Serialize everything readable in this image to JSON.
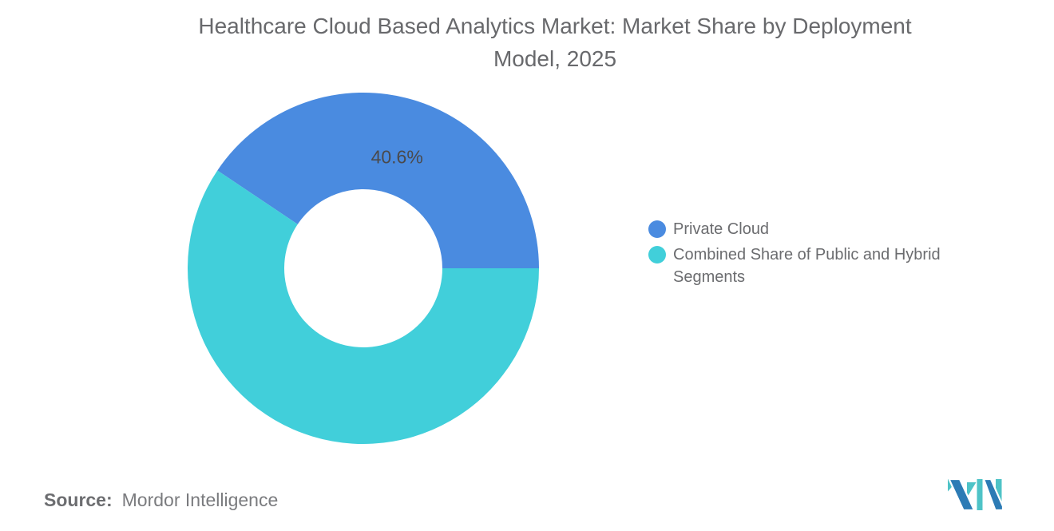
{
  "title": {
    "line1": "Healthcare Cloud Based Analytics Market: Market Share by Deployment",
    "line2": "Model, 2025"
  },
  "chart_data": {
    "type": "pie",
    "subtype": "donut",
    "title": "Healthcare Cloud Based Analytics Market: Market Share by Deployment Model, 2025",
    "labels": [
      "Private Cloud",
      "Combined Share of Public and Hybrid Segments"
    ],
    "values": [
      40.6,
      59.4
    ],
    "colors": [
      "#4A8BE0",
      "#41CFDA"
    ],
    "data_labels": [
      "40.6%",
      ""
    ],
    "inner_radius_ratio": 0.45,
    "legend_position": "right",
    "grid": false
  },
  "legend": {
    "items": [
      {
        "label": "Private Cloud",
        "color": "#4A8BE0"
      },
      {
        "label": "Combined Share of Public and Hybrid Segments",
        "color": "#41CFDA"
      }
    ]
  },
  "source": {
    "label": "Source:",
    "text": "Mordor Intelligence"
  },
  "logo": {
    "name": "mordor-intelligence-logo",
    "blue": "#2C7BB5",
    "teal": "#4EC3C7"
  }
}
